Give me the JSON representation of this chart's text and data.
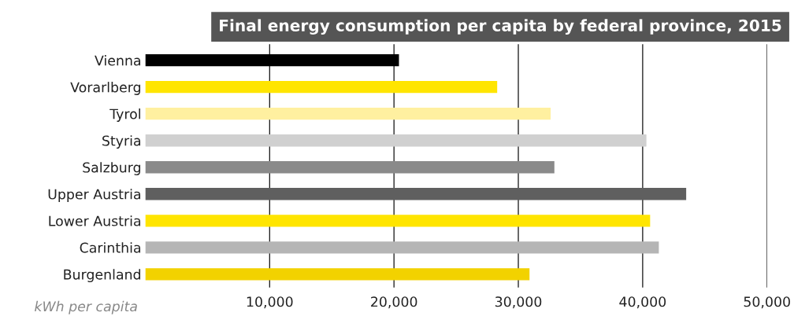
{
  "chart_data": {
    "type": "bar",
    "orientation": "horizontal",
    "title": "Final energy consumption per capita by federal province, 2015",
    "xlabel": "kWh per capita",
    "categories": [
      "Vienna",
      "Vorarlberg",
      "Tyrol",
      "Styria",
      "Salzburg",
      "Upper Austria",
      "Lower Austria",
      "Carinthia",
      "Burgenland"
    ],
    "values": [
      20400,
      28300,
      32600,
      40300,
      32900,
      43500,
      40600,
      41300,
      30900
    ],
    "colors": [
      "#000000",
      "#ffe500",
      "#fff0a0",
      "#d0d0d0",
      "#8a8a8a",
      "#5f5f5f",
      "#ffe500",
      "#b5b5b5",
      "#f2d200"
    ],
    "xlim": [
      0,
      50000
    ],
    "xticks": [
      {
        "value": 10000,
        "label": "10,000"
      },
      {
        "value": 20000,
        "label": "20,000"
      },
      {
        "value": 30000,
        "label": "30,000"
      },
      {
        "value": 40000,
        "label": "40,000"
      },
      {
        "value": 50000,
        "label": "50,000"
      }
    ],
    "grid": "x",
    "legend": false
  }
}
